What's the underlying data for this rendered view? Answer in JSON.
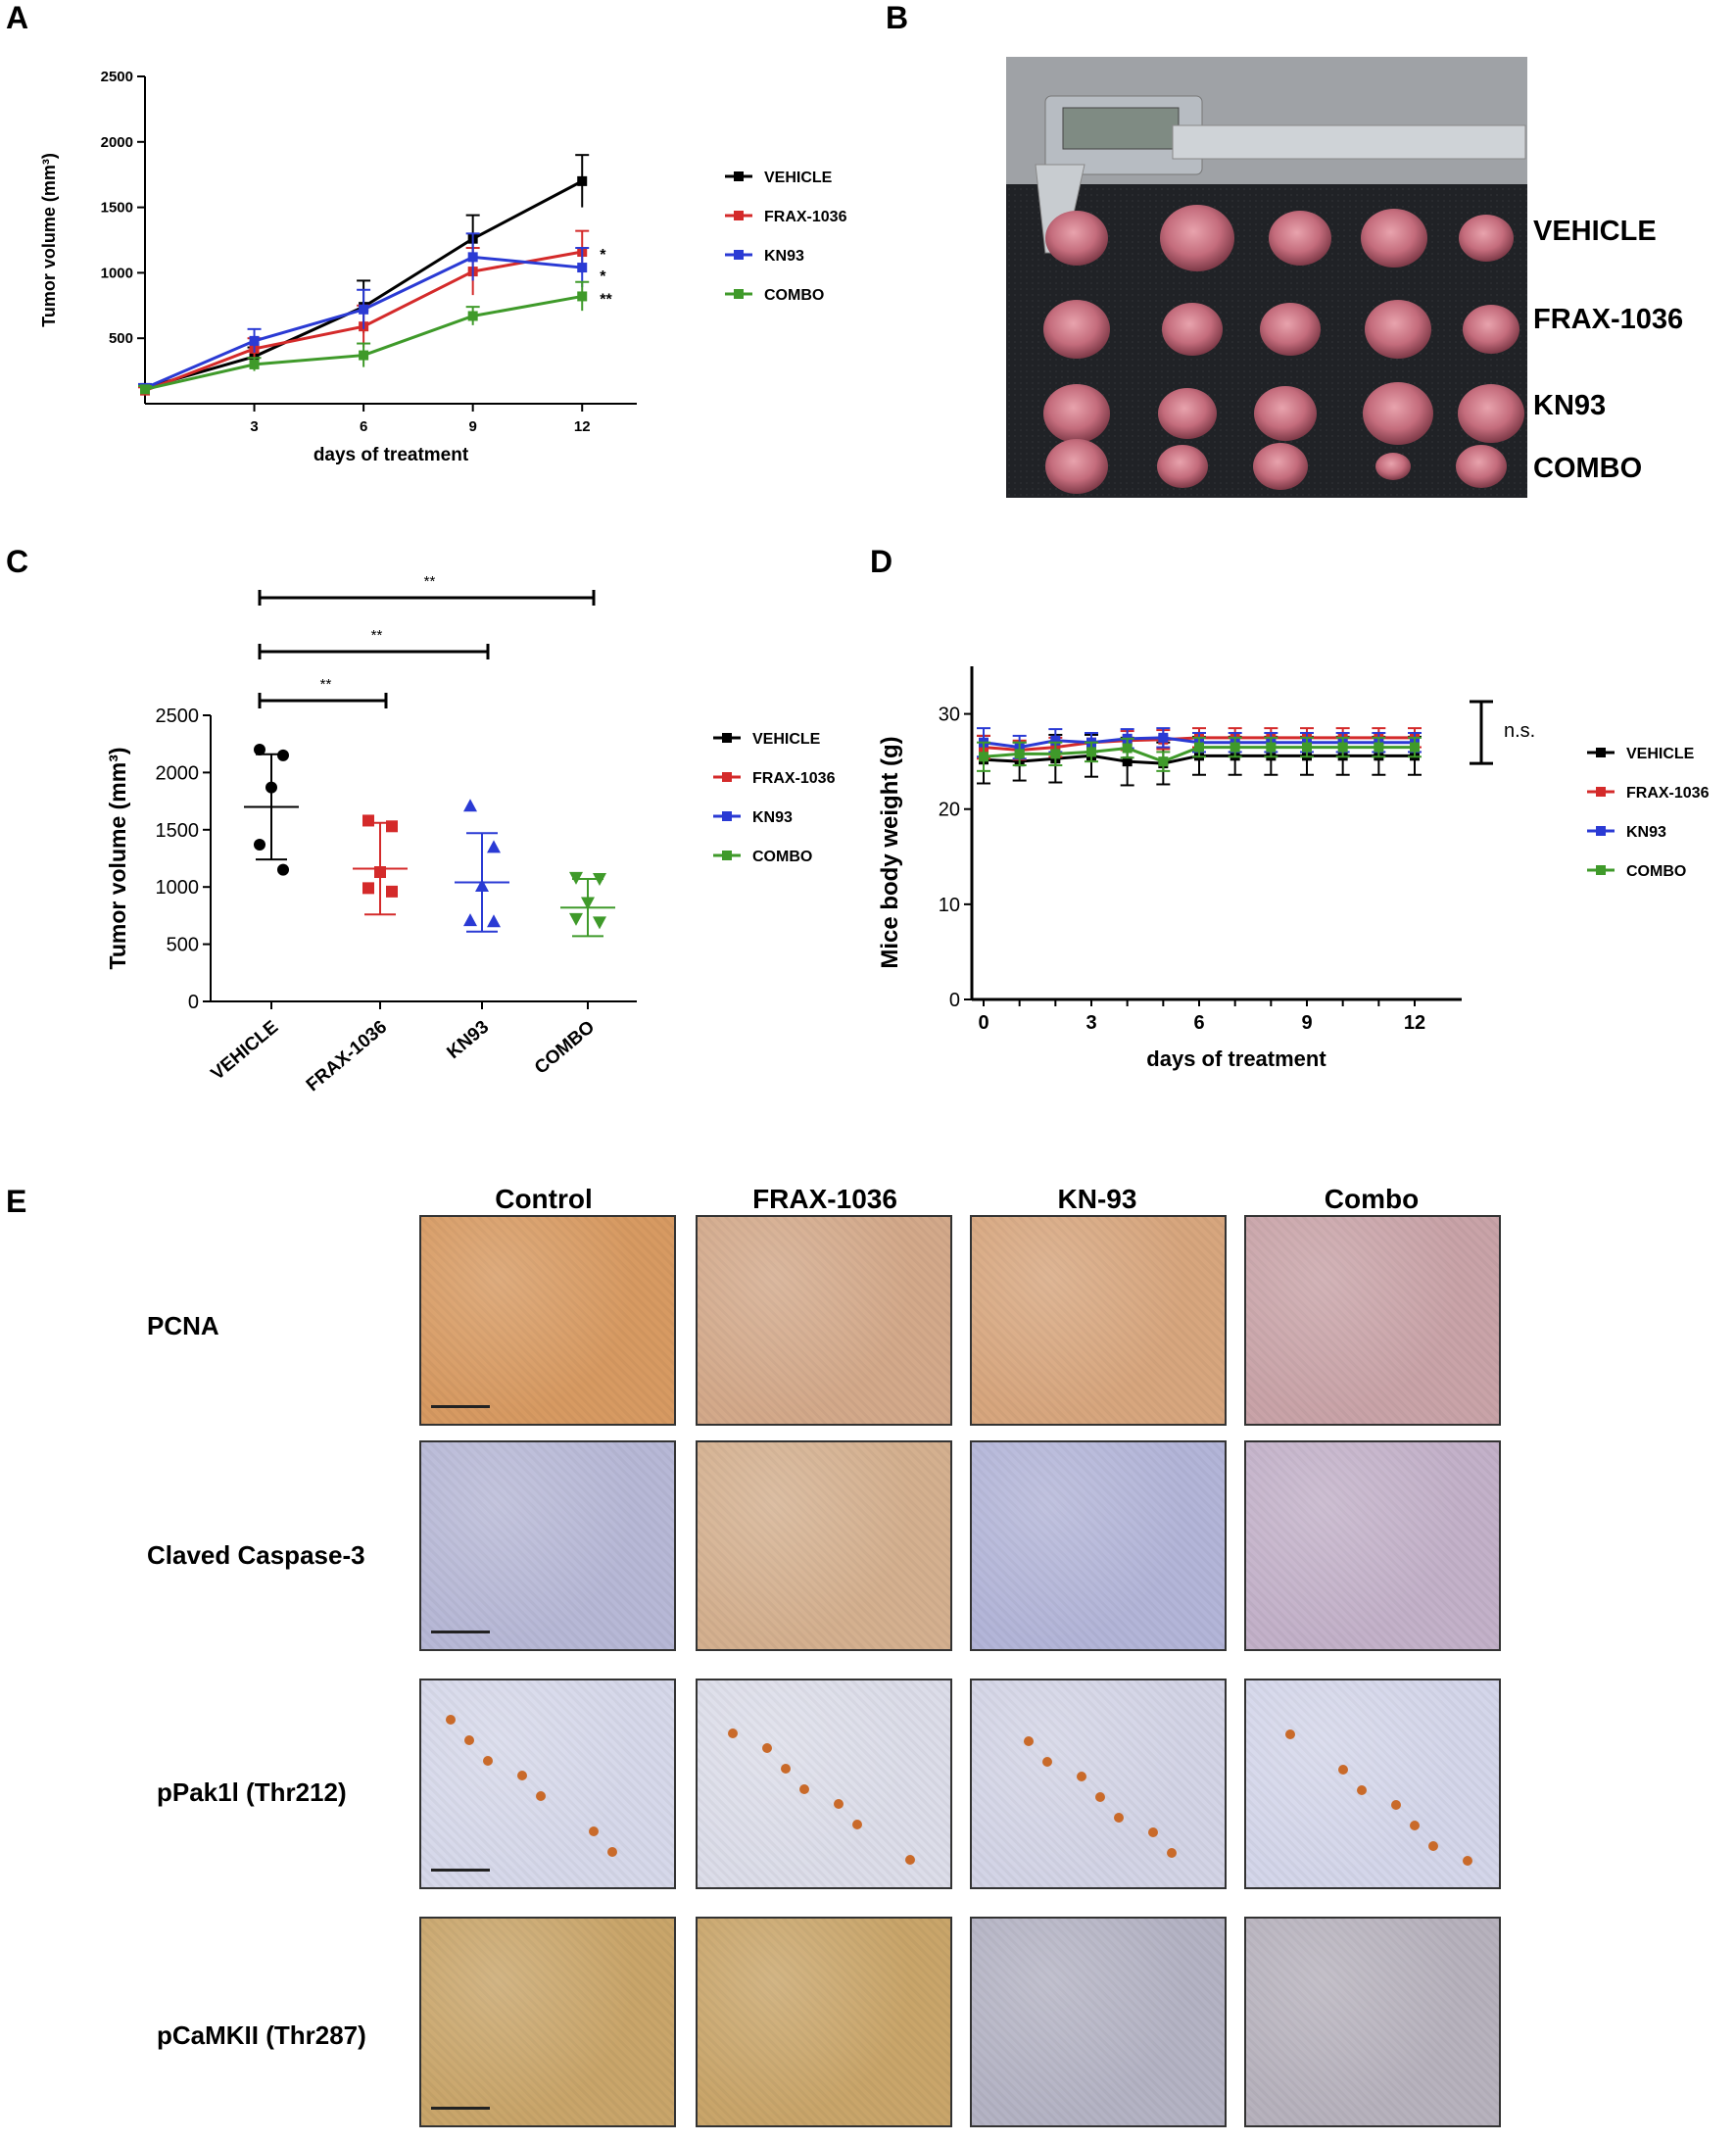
{
  "panels": {
    "A": "A",
    "B": "B",
    "C": "C",
    "D": "D",
    "E": "E"
  },
  "legend_groups": [
    "VEHICLE",
    "FRAX-1036",
    "KN93",
    "COMBO"
  ],
  "colors": {
    "VEHICLE": "#000000",
    "FRAX-1036": "#d42a2a",
    "KN93": "#2a3ad4",
    "COMBO": "#3f9a2a"
  },
  "chart_data": [
    {
      "panel": "A",
      "type": "line",
      "xlabel": "days of treatment",
      "ylabel": "Tumor volume (mm³)",
      "xticks": [
        3,
        6,
        9,
        12
      ],
      "yticks": [
        500,
        1000,
        1500,
        2000,
        2500
      ],
      "ylim": [
        0,
        2500
      ],
      "x": [
        0,
        3,
        6,
        9,
        12
      ],
      "series": [
        {
          "name": "VEHICLE",
          "values": [
            120,
            360,
            740,
            1260,
            1700
          ],
          "err": [
            30,
            70,
            200,
            180,
            200
          ]
        },
        {
          "name": "FRAX-1036",
          "values": [
            100,
            420,
            590,
            1010,
            1160
          ],
          "err": [
            25,
            80,
            160,
            180,
            160
          ]
        },
        {
          "name": "KN93",
          "values": [
            120,
            480,
            720,
            1120,
            1040
          ],
          "err": [
            30,
            90,
            150,
            180,
            150
          ]
        },
        {
          "name": "COMBO",
          "values": [
            110,
            300,
            370,
            670,
            820
          ],
          "err": [
            25,
            50,
            90,
            70,
            110
          ]
        }
      ],
      "significance": [
        "*",
        "*",
        "**"
      ],
      "legend_position": "right"
    },
    {
      "panel": "C",
      "type": "scatter",
      "ylabel": "Tumor volume (mm³)",
      "categories": [
        "VEHICLE",
        "FRAX-1036",
        "KN93",
        "COMBO"
      ],
      "yticks": [
        0,
        500,
        1000,
        1500,
        2000,
        2500
      ],
      "ylim": [
        0,
        2500
      ],
      "points": [
        [
          2200,
          2150,
          1870,
          1370,
          1150
        ],
        [
          1580,
          1530,
          1130,
          990,
          960
        ],
        [
          1710,
          1350,
          1010,
          710,
          700
        ],
        [
          1080,
          1070,
          860,
          720,
          690
        ]
      ],
      "mean": [
        1700,
        1160,
        1040,
        820
      ],
      "sd": [
        460,
        400,
        430,
        250
      ],
      "comparisons": [
        {
          "from": "VEHICLE",
          "to": "FRAX-1036",
          "label": "**"
        },
        {
          "from": "VEHICLE",
          "to": "KN93",
          "label": "**"
        },
        {
          "from": "VEHICLE",
          "to": "COMBO",
          "label": "**"
        }
      ],
      "legend_position": "right"
    },
    {
      "panel": "D",
      "type": "line",
      "xlabel": "days of treatment",
      "ylabel": "Mice body weight (g)",
      "xticks": [
        0,
        3,
        6,
        9,
        12
      ],
      "yticks": [
        0,
        10,
        20,
        30
      ],
      "ylim": [
        0,
        35
      ],
      "x": [
        0,
        1,
        2,
        3,
        4,
        5,
        6,
        7,
        8,
        9,
        10,
        11,
        12
      ],
      "series": [
        {
          "name": "VEHICLE",
          "values": [
            25.2,
            25.0,
            25.3,
            25.6,
            25.0,
            24.8,
            25.6,
            25.6,
            25.6,
            25.6,
            25.6,
            25.6,
            25.6
          ],
          "err": [
            2.5,
            2.0,
            2.5,
            2.2,
            2.5,
            2.2,
            2.0,
            2.0,
            2.0,
            2.0,
            2.0,
            2.0,
            2.0
          ]
        },
        {
          "name": "FRAX-1036",
          "values": [
            26.5,
            26.2,
            26.5,
            27.0,
            27.2,
            27.3,
            27.5,
            27.5,
            27.5,
            27.5,
            27.5,
            27.5,
            27.5
          ],
          "err": [
            1.2,
            1.0,
            1.0,
            1.0,
            1.0,
            1.0,
            1.0,
            1.0,
            1.0,
            1.0,
            1.0,
            1.0,
            1.0
          ]
        },
        {
          "name": "KN93",
          "values": [
            27.0,
            26.5,
            27.2,
            27.0,
            27.4,
            27.5,
            27.0,
            27.0,
            27.0,
            27.0,
            27.0,
            27.0,
            27.0
          ],
          "err": [
            1.5,
            1.2,
            1.2,
            1.0,
            1.0,
            1.0,
            1.0,
            1.0,
            1.0,
            1.0,
            1.0,
            1.0,
            1.0
          ]
        },
        {
          "name": "COMBO",
          "values": [
            25.5,
            25.8,
            25.8,
            26.0,
            26.4,
            25.0,
            26.5,
            26.5,
            26.5,
            26.5,
            26.5,
            26.5,
            26.5
          ],
          "err": [
            1.5,
            1.2,
            1.2,
            1.0,
            1.0,
            1.0,
            1.0,
            1.0,
            1.0,
            1.0,
            1.0,
            1.0,
            1.0
          ]
        }
      ],
      "annotation": "n.s.",
      "legend_position": "right"
    }
  ],
  "photo_b": {
    "row_labels": [
      "VEHICLE",
      "FRAX-1036",
      "KN93",
      "COMBO"
    ]
  },
  "ihc": {
    "columns": [
      "Control",
      "FRAX-1036",
      "KN-93",
      "Combo"
    ],
    "rows": [
      "PCNA",
      "Claved Caspase-3",
      "pPak1l (Thr212)",
      "pCaMKII (Thr287)"
    ]
  }
}
